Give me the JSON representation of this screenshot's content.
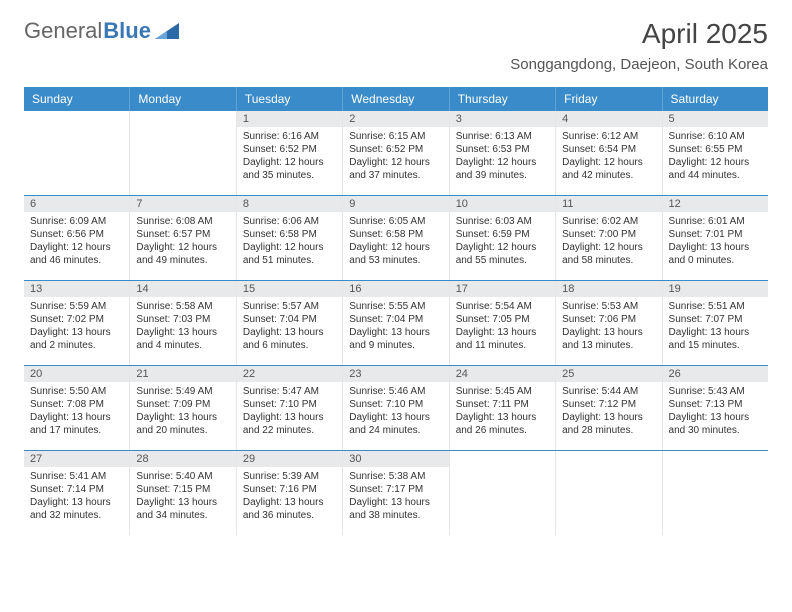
{
  "brand": {
    "text1": "General",
    "text2": "Blue",
    "text1_color": "#666666",
    "text2_color": "#3a78b5",
    "logo_fill": "#2a6aa8"
  },
  "title": "April 2025",
  "location": "Songgangdong, Daejeon, South Korea",
  "colors": {
    "header_bg": "#3a8bc9",
    "header_text": "#ffffff",
    "daynum_bg": "#e7e9eb",
    "daynum_text": "#555555",
    "cell_border": "#e6e6e6",
    "week_border": "#3a8bc9",
    "body_text": "#333333",
    "background": "#ffffff"
  },
  "fonts": {
    "title_size_pt": 21,
    "location_size_pt": 11,
    "header_size_pt": 9,
    "daynum_size_pt": 8,
    "body_size_pt": 7.5
  },
  "day_names": [
    "Sunday",
    "Monday",
    "Tuesday",
    "Wednesday",
    "Thursday",
    "Friday",
    "Saturday"
  ],
  "weeks": [
    [
      null,
      null,
      {
        "d": "1",
        "sr": "Sunrise: 6:16 AM",
        "ss": "Sunset: 6:52 PM",
        "dl1": "Daylight: 12 hours",
        "dl2": "and 35 minutes."
      },
      {
        "d": "2",
        "sr": "Sunrise: 6:15 AM",
        "ss": "Sunset: 6:52 PM",
        "dl1": "Daylight: 12 hours",
        "dl2": "and 37 minutes."
      },
      {
        "d": "3",
        "sr": "Sunrise: 6:13 AM",
        "ss": "Sunset: 6:53 PM",
        "dl1": "Daylight: 12 hours",
        "dl2": "and 39 minutes."
      },
      {
        "d": "4",
        "sr": "Sunrise: 6:12 AM",
        "ss": "Sunset: 6:54 PM",
        "dl1": "Daylight: 12 hours",
        "dl2": "and 42 minutes."
      },
      {
        "d": "5",
        "sr": "Sunrise: 6:10 AM",
        "ss": "Sunset: 6:55 PM",
        "dl1": "Daylight: 12 hours",
        "dl2": "and 44 minutes."
      }
    ],
    [
      {
        "d": "6",
        "sr": "Sunrise: 6:09 AM",
        "ss": "Sunset: 6:56 PM",
        "dl1": "Daylight: 12 hours",
        "dl2": "and 46 minutes."
      },
      {
        "d": "7",
        "sr": "Sunrise: 6:08 AM",
        "ss": "Sunset: 6:57 PM",
        "dl1": "Daylight: 12 hours",
        "dl2": "and 49 minutes."
      },
      {
        "d": "8",
        "sr": "Sunrise: 6:06 AM",
        "ss": "Sunset: 6:58 PM",
        "dl1": "Daylight: 12 hours",
        "dl2": "and 51 minutes."
      },
      {
        "d": "9",
        "sr": "Sunrise: 6:05 AM",
        "ss": "Sunset: 6:58 PM",
        "dl1": "Daylight: 12 hours",
        "dl2": "and 53 minutes."
      },
      {
        "d": "10",
        "sr": "Sunrise: 6:03 AM",
        "ss": "Sunset: 6:59 PM",
        "dl1": "Daylight: 12 hours",
        "dl2": "and 55 minutes."
      },
      {
        "d": "11",
        "sr": "Sunrise: 6:02 AM",
        "ss": "Sunset: 7:00 PM",
        "dl1": "Daylight: 12 hours",
        "dl2": "and 58 minutes."
      },
      {
        "d": "12",
        "sr": "Sunrise: 6:01 AM",
        "ss": "Sunset: 7:01 PM",
        "dl1": "Daylight: 13 hours",
        "dl2": "and 0 minutes."
      }
    ],
    [
      {
        "d": "13",
        "sr": "Sunrise: 5:59 AM",
        "ss": "Sunset: 7:02 PM",
        "dl1": "Daylight: 13 hours",
        "dl2": "and 2 minutes."
      },
      {
        "d": "14",
        "sr": "Sunrise: 5:58 AM",
        "ss": "Sunset: 7:03 PM",
        "dl1": "Daylight: 13 hours",
        "dl2": "and 4 minutes."
      },
      {
        "d": "15",
        "sr": "Sunrise: 5:57 AM",
        "ss": "Sunset: 7:04 PM",
        "dl1": "Daylight: 13 hours",
        "dl2": "and 6 minutes."
      },
      {
        "d": "16",
        "sr": "Sunrise: 5:55 AM",
        "ss": "Sunset: 7:04 PM",
        "dl1": "Daylight: 13 hours",
        "dl2": "and 9 minutes."
      },
      {
        "d": "17",
        "sr": "Sunrise: 5:54 AM",
        "ss": "Sunset: 7:05 PM",
        "dl1": "Daylight: 13 hours",
        "dl2": "and 11 minutes."
      },
      {
        "d": "18",
        "sr": "Sunrise: 5:53 AM",
        "ss": "Sunset: 7:06 PM",
        "dl1": "Daylight: 13 hours",
        "dl2": "and 13 minutes."
      },
      {
        "d": "19",
        "sr": "Sunrise: 5:51 AM",
        "ss": "Sunset: 7:07 PM",
        "dl1": "Daylight: 13 hours",
        "dl2": "and 15 minutes."
      }
    ],
    [
      {
        "d": "20",
        "sr": "Sunrise: 5:50 AM",
        "ss": "Sunset: 7:08 PM",
        "dl1": "Daylight: 13 hours",
        "dl2": "and 17 minutes."
      },
      {
        "d": "21",
        "sr": "Sunrise: 5:49 AM",
        "ss": "Sunset: 7:09 PM",
        "dl1": "Daylight: 13 hours",
        "dl2": "and 20 minutes."
      },
      {
        "d": "22",
        "sr": "Sunrise: 5:47 AM",
        "ss": "Sunset: 7:10 PM",
        "dl1": "Daylight: 13 hours",
        "dl2": "and 22 minutes."
      },
      {
        "d": "23",
        "sr": "Sunrise: 5:46 AM",
        "ss": "Sunset: 7:10 PM",
        "dl1": "Daylight: 13 hours",
        "dl2": "and 24 minutes."
      },
      {
        "d": "24",
        "sr": "Sunrise: 5:45 AM",
        "ss": "Sunset: 7:11 PM",
        "dl1": "Daylight: 13 hours",
        "dl2": "and 26 minutes."
      },
      {
        "d": "25",
        "sr": "Sunrise: 5:44 AM",
        "ss": "Sunset: 7:12 PM",
        "dl1": "Daylight: 13 hours",
        "dl2": "and 28 minutes."
      },
      {
        "d": "26",
        "sr": "Sunrise: 5:43 AM",
        "ss": "Sunset: 7:13 PM",
        "dl1": "Daylight: 13 hours",
        "dl2": "and 30 minutes."
      }
    ],
    [
      {
        "d": "27",
        "sr": "Sunrise: 5:41 AM",
        "ss": "Sunset: 7:14 PM",
        "dl1": "Daylight: 13 hours",
        "dl2": "and 32 minutes."
      },
      {
        "d": "28",
        "sr": "Sunrise: 5:40 AM",
        "ss": "Sunset: 7:15 PM",
        "dl1": "Daylight: 13 hours",
        "dl2": "and 34 minutes."
      },
      {
        "d": "29",
        "sr": "Sunrise: 5:39 AM",
        "ss": "Sunset: 7:16 PM",
        "dl1": "Daylight: 13 hours",
        "dl2": "and 36 minutes."
      },
      {
        "d": "30",
        "sr": "Sunrise: 5:38 AM",
        "ss": "Sunset: 7:17 PM",
        "dl1": "Daylight: 13 hours",
        "dl2": "and 38 minutes."
      },
      null,
      null,
      null
    ]
  ]
}
